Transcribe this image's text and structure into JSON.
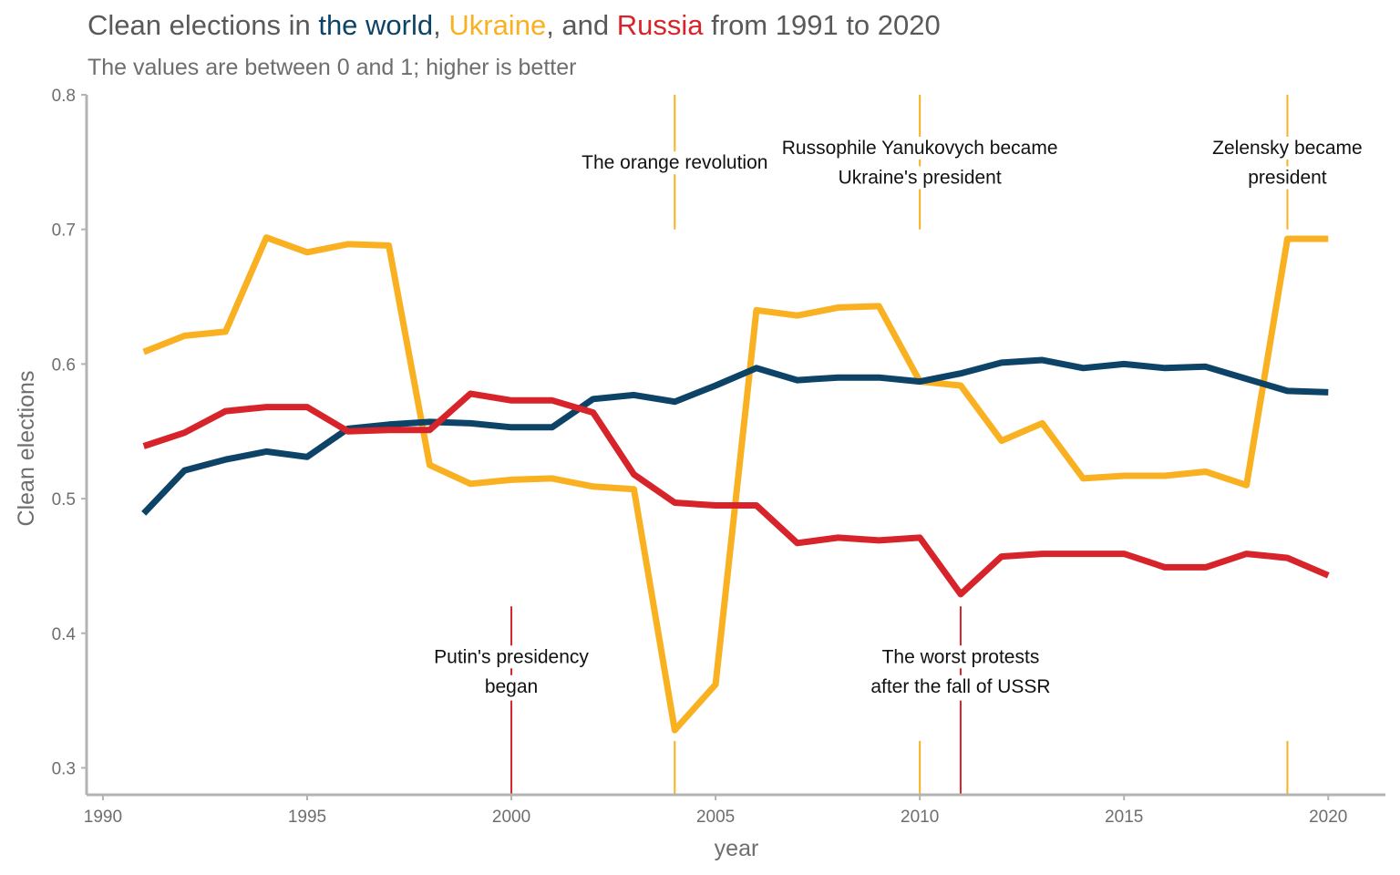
{
  "title": {
    "p1": "Clean elections in ",
    "world": "the world",
    "p2": ", ",
    "ukraine": "Ukraine",
    "p3": ", and ",
    "russia": "Russia",
    "p4": " from 1991 to 2020"
  },
  "subtitle": "The values are between 0 and 1; higher is better",
  "chart_data": {
    "type": "line",
    "xlabel": "year",
    "ylabel": "Clean elections",
    "xlim": [
      1989.6,
      2021.4
    ],
    "ylim": [
      0.28,
      0.8
    ],
    "x_ticks": [
      1990,
      1995,
      2000,
      2005,
      2010,
      2015,
      2020
    ],
    "y_ticks": [
      0.3,
      0.4,
      0.5,
      0.6,
      0.7,
      0.8
    ],
    "y_tick_labels": [
      "0.3",
      "0.4",
      "0.5",
      "0.6",
      "0.7",
      "0.8"
    ],
    "grid": false,
    "x": [
      1991,
      1992,
      1993,
      1994,
      1995,
      1996,
      1997,
      1998,
      1999,
      2000,
      2001,
      2002,
      2003,
      2004,
      2005,
      2006,
      2007,
      2008,
      2009,
      2010,
      2011,
      2012,
      2013,
      2014,
      2015,
      2016,
      2017,
      2018,
      2019,
      2020
    ],
    "series": [
      {
        "name": "Ukraine",
        "color": "#f9b122",
        "values": [
          0.609,
          0.621,
          0.624,
          0.694,
          0.683,
          0.689,
          0.688,
          0.525,
          0.511,
          0.514,
          0.515,
          0.509,
          0.507,
          0.328,
          0.362,
          0.64,
          0.636,
          0.642,
          0.643,
          0.587,
          0.584,
          0.543,
          0.556,
          0.515,
          0.517,
          0.517,
          0.52,
          0.51,
          0.693,
          0.693
        ]
      },
      {
        "name": "the world",
        "color": "#0d4367",
        "values": [
          0.489,
          0.521,
          0.529,
          0.535,
          0.531,
          0.552,
          0.555,
          0.557,
          0.556,
          0.553,
          0.553,
          0.574,
          0.577,
          0.572,
          0.584,
          0.597,
          0.588,
          0.59,
          0.59,
          0.587,
          0.593,
          0.601,
          0.603,
          0.597,
          0.6,
          0.597,
          0.598,
          0.589,
          0.58,
          0.579
        ]
      },
      {
        "name": "Russia",
        "color": "#d7242b",
        "values": [
          0.539,
          0.549,
          0.565,
          0.568,
          0.568,
          0.55,
          0.551,
          0.551,
          0.578,
          0.573,
          0.573,
          0.564,
          0.518,
          0.497,
          0.495,
          0.495,
          0.467,
          0.471,
          0.469,
          0.471,
          0.429,
          0.457,
          0.459,
          0.459,
          0.459,
          0.449,
          0.449,
          0.459,
          0.456,
          0.443
        ]
      }
    ],
    "annotations": [
      {
        "x": 2004,
        "color": "#f9b122",
        "lines": [
          "The orange revolution"
        ],
        "line_top": [
          0.7,
          0.8
        ],
        "line_bottom": [
          0.28,
          0.32
        ],
        "label_y": [
          0.745
        ]
      },
      {
        "x": 2010,
        "color": "#f9b122",
        "lines": [
          "Russophile Yanukovych became",
          "Ukraine's president"
        ],
        "line_top": [
          0.7,
          0.8
        ],
        "line_bottom": [
          0.28,
          0.32
        ],
        "label_y": [
          0.756,
          0.734
        ]
      },
      {
        "x": 2019,
        "color": "#f9b122",
        "lines": [
          "Zelensky became",
          "president"
        ],
        "line_top": [
          0.7,
          0.8
        ],
        "line_bottom": [
          0.28,
          0.32
        ],
        "label_y": [
          0.756,
          0.734
        ]
      },
      {
        "x": 2000,
        "color": "#d7242b",
        "lines": [
          "Putin's presidency",
          "began"
        ],
        "line_top": [
          0.36,
          0.42
        ],
        "line_bottom": [
          0.28,
          0.35
        ],
        "label_y": [
          0.378,
          0.356
        ]
      },
      {
        "x": 2011,
        "color": "#d7242b",
        "lines": [
          "The worst protests",
          "after the fall of USSR"
        ],
        "line_top": [
          0.36,
          0.42
        ],
        "line_bottom": [
          0.28,
          0.35
        ],
        "label_y": [
          0.378,
          0.356
        ]
      }
    ]
  }
}
